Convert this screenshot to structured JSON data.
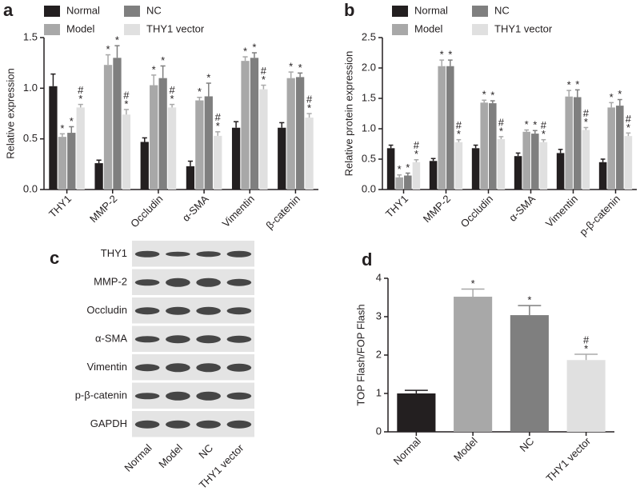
{
  "chart_data": [
    {
      "type": "bar",
      "panel_label": "a",
      "y_label": "Relative expression",
      "categories": [
        "THY1",
        "MMP-2",
        "Occludin",
        "α-SMA",
        "Vimentin",
        "β-catenin"
      ],
      "series": [
        {
          "name": "Normal",
          "color": "#231f20",
          "values": [
            1.02,
            0.26,
            0.47,
            0.23,
            0.61,
            0.61
          ],
          "errors": [
            0.12,
            0.03,
            0.04,
            0.05,
            0.06,
            0.05
          ]
        },
        {
          "name": "Model",
          "color": "#a8a8a8",
          "values": [
            0.52,
            1.23,
            1.03,
            0.88,
            1.27,
            1.1
          ],
          "errors": [
            0.03,
            0.1,
            0.1,
            0.03,
            0.04,
            0.06
          ],
          "significance": [
            [
              "*"
            ],
            [
              "*"
            ],
            [
              "*"
            ],
            [
              "*"
            ],
            [
              "*"
            ],
            [
              "*"
            ]
          ]
        },
        {
          "name": "NC",
          "color": "#7f7f7f",
          "values": [
            0.56,
            1.3,
            1.1,
            0.92,
            1.3,
            1.11
          ],
          "errors": [
            0.06,
            0.12,
            0.12,
            0.13,
            0.05,
            0.04
          ],
          "significance": [
            [
              "*"
            ],
            [
              "*"
            ],
            [
              "*"
            ],
            [
              "*"
            ],
            [
              "*"
            ],
            [
              "*"
            ]
          ]
        },
        {
          "name": "THY1 vector",
          "color": "#e0e0e0",
          "values": [
            0.81,
            0.74,
            0.81,
            0.53,
            0.99,
            0.71
          ],
          "errors": [
            0.03,
            0.05,
            0.03,
            0.04,
            0.04,
            0.04
          ],
          "significance": [
            [
              "#",
              "*"
            ],
            [
              "#",
              "*"
            ],
            [
              "#",
              "*"
            ],
            [
              "#",
              "*"
            ],
            [
              "#",
              "*"
            ],
            [
              "#",
              "*"
            ]
          ]
        }
      ],
      "ylim": [
        0,
        1.5
      ],
      "yticks": [
        {
          "value": 0,
          "label": "0.0"
        },
        0.5,
        {
          "value": 1,
          "label": "1.0"
        },
        1.5
      ],
      "grid": false
    },
    {
      "type": "bar",
      "panel_label": "b",
      "y_label": "Relative protein expression",
      "categories": [
        "THY1",
        "MMP-2",
        "Occludin",
        "α-SMA",
        "Vimentin",
        "p-β-catenin"
      ],
      "series": [
        {
          "name": "Normal",
          "color": "#231f20",
          "values": [
            0.68,
            0.47,
            0.68,
            0.55,
            0.6,
            0.45
          ],
          "errors": [
            0.05,
            0.04,
            0.05,
            0.05,
            0.06,
            0.05
          ]
        },
        {
          "name": "Model",
          "color": "#a8a8a8",
          "values": [
            0.2,
            2.03,
            1.43,
            0.95,
            1.53,
            1.35
          ],
          "errors": [
            0.04,
            0.1,
            0.04,
            0.03,
            0.1,
            0.08
          ],
          "significance": [
            [
              "*"
            ],
            [
              "*"
            ],
            [
              "*"
            ],
            [
              "*"
            ],
            [
              "*"
            ],
            [
              "*"
            ]
          ]
        },
        {
          "name": "NC",
          "color": "#7f7f7f",
          "values": [
            0.23,
            2.03,
            1.42,
            0.92,
            1.52,
            1.38
          ],
          "errors": [
            0.04,
            0.1,
            0.04,
            0.05,
            0.12,
            0.1
          ],
          "significance": [
            [
              "*"
            ],
            [
              "*"
            ],
            [
              "*"
            ],
            [
              "*"
            ],
            [
              "*"
            ],
            [
              "*"
            ]
          ]
        },
        {
          "name": "THY1 vector",
          "color": "#e0e0e0",
          "values": [
            0.45,
            0.78,
            0.83,
            0.78,
            0.98,
            0.88
          ],
          "errors": [
            0.04,
            0.04,
            0.04,
            0.04,
            0.04,
            0.05
          ],
          "significance": [
            [
              "#",
              "*"
            ],
            [
              "#",
              "*"
            ],
            [
              "#",
              "*"
            ],
            [
              "#",
              "*"
            ],
            [
              "#",
              "*"
            ],
            [
              "#",
              "*"
            ]
          ]
        }
      ],
      "ylim": [
        0,
        2.5
      ],
      "yticks": [
        {
          "value": 0,
          "label": "0.0"
        },
        0.5,
        {
          "value": 1,
          "label": "1.0"
        },
        1.5,
        {
          "value": 2,
          "label": "2.0"
        },
        2.5
      ],
      "grid": false
    },
    {
      "type": "bar",
      "panel_label": "d",
      "y_label": "TOP Flash/FOP Flash",
      "categories": [
        "Normal",
        "Model",
        "NC",
        "THY1 vector"
      ],
      "values": [
        1.0,
        3.52,
        3.04,
        1.87
      ],
      "errors": [
        0.08,
        0.2,
        0.25,
        0.15
      ],
      "colors": [
        "#231f20",
        "#a8a8a8",
        "#7f7f7f",
        "#e0e0e0"
      ],
      "significance": [
        null,
        [
          "*"
        ],
        [
          "*"
        ],
        [
          "#",
          "*"
        ]
      ],
      "ylim": [
        0,
        4
      ],
      "yticks": [
        0,
        1,
        2,
        3,
        4
      ],
      "grid": false
    }
  ],
  "blot": {
    "panel_label": "c",
    "rows": [
      "THY1",
      "MMP-2",
      "Occludin",
      "α-SMA",
      "Vimentin",
      "p-β-catenin",
      "GAPDH"
    ],
    "lanes": [
      "Normal",
      "Model",
      "NC",
      "THY1 vector"
    ]
  }
}
